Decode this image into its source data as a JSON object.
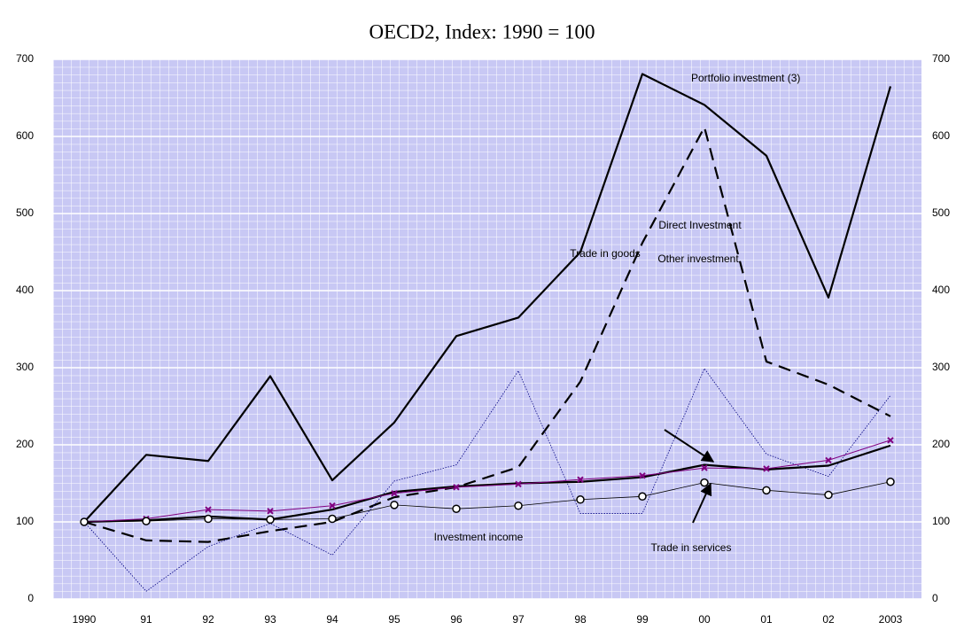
{
  "chart_data": {
    "type": "line",
    "title": "OECD2, Index: 1990 = 100",
    "categories": [
      "1990",
      "91",
      "92",
      "93",
      "94",
      "95",
      "96",
      "97",
      "98",
      "99",
      "00",
      "01",
      "02",
      "2003"
    ],
    "ylim": [
      0,
      700
    ],
    "yticks": [
      0,
      100,
      200,
      300,
      400,
      500,
      600,
      700
    ],
    "grid": true,
    "series": [
      {
        "name": "Portfolio investment (3)",
        "color": "#000000",
        "width": 2.2,
        "dash": "none",
        "marker": "none",
        "values": [
          100,
          187,
          179,
          289,
          154,
          229,
          341,
          365,
          450,
          681,
          641,
          575,
          391,
          665
        ]
      },
      {
        "name": "Direct Investment",
        "color": "#000000",
        "width": 2.2,
        "dash": "14 8",
        "marker": "none",
        "values": [
          100,
          76,
          74,
          88,
          100,
          132,
          145,
          171,
          282,
          462,
          612,
          308,
          278,
          237
        ]
      },
      {
        "name": "Other investment",
        "color": "#000080",
        "width": 0.8,
        "dash": "1.5 1.5",
        "marker": "none",
        "values": [
          100,
          10,
          68,
          98,
          57,
          153,
          174,
          296,
          111,
          111,
          299,
          188,
          159,
          264
        ]
      },
      {
        "name": "Trade in goods",
        "color": "#000000",
        "width": 2.2,
        "dash": "none",
        "marker": "none",
        "values": [
          100,
          102,
          107,
          103,
          116,
          139,
          146,
          150,
          152,
          158,
          174,
          168,
          173,
          199
        ]
      },
      {
        "name": "Investment income",
        "color": "#800080",
        "width": 1,
        "dash": "none",
        "marker": "x",
        "values": [
          100,
          104,
          116,
          114,
          121,
          137,
          145,
          149,
          155,
          160,
          170,
          169,
          180,
          206
        ]
      },
      {
        "name": "Trade in services",
        "color": "#000000",
        "width": 0.8,
        "dash": "none",
        "marker": "circle",
        "values": [
          100,
          101,
          104,
          103,
          104,
          122,
          117,
          121,
          129,
          133,
          151,
          141,
          135,
          152
        ]
      }
    ]
  }
}
